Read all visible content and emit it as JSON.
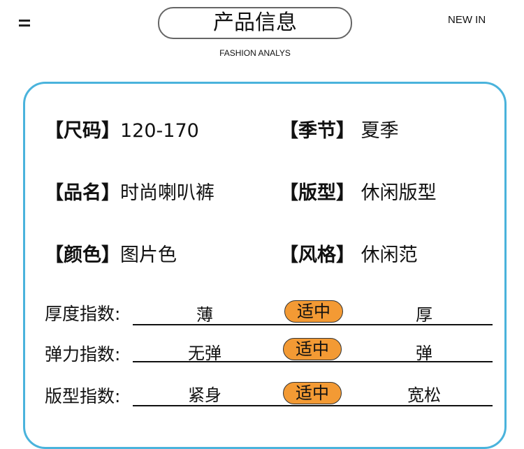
{
  "header": {
    "title": "产品信息",
    "right": "NEW IN",
    "subtitle": "FASHION ANALYS",
    "menu_icon": "menu-icon"
  },
  "info": [
    {
      "label": "【尺码】",
      "value": "120-170"
    },
    {
      "label": "【季节】",
      "value": "夏季"
    },
    {
      "label": "【品名】",
      "value": "时尚喇叭裤"
    },
    {
      "label": "【版型】",
      "value": "休闲版型"
    },
    {
      "label": "【颜色】",
      "value": "图片色"
    },
    {
      "label": "【风格】",
      "value": "休闲范"
    }
  ],
  "indices": [
    {
      "label": "厚度指数:",
      "low": "薄",
      "mid": "适中",
      "high": "厚",
      "selected": "适中"
    },
    {
      "label": "弹力指数:",
      "low": "无弹",
      "mid": "适中",
      "high": "弹",
      "selected": "适中"
    },
    {
      "label": "版型指数:",
      "low": "紧身",
      "mid": "适中",
      "high": "宽松",
      "selected": "适中"
    }
  ],
  "colors": {
    "card_border": "#4ab3dc",
    "badge": "#f39a34"
  }
}
